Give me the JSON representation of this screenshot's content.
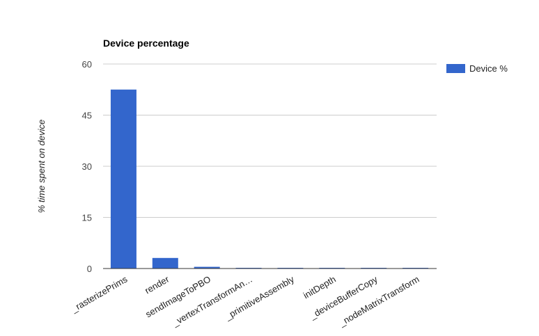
{
  "chart_data": {
    "type": "bar",
    "title": "Device percentage",
    "ylabel": "% time spent on device",
    "xlabel": "",
    "categories": [
      "_rasterizePrims",
      "render",
      "sendImageToPBO",
      "_vertexTransformAn…",
      "_primitiveAssembly",
      "initDepth",
      "_deviceBufferCopy",
      "_nodeMatrixTransform"
    ],
    "series": [
      {
        "name": "Device %",
        "values": [
          52.5,
          3.1,
          0.5,
          0.2,
          0.15,
          0.1,
          0.03,
          0.02
        ]
      }
    ],
    "ylim": [
      0,
      60
    ],
    "yticks": [
      0,
      15,
      30,
      45,
      60
    ],
    "grid": true,
    "legend_position": "right",
    "colors": {
      "bar": "#3366cc",
      "grid": "#cccccc",
      "axis": "#333333",
      "text": "#444444"
    }
  }
}
